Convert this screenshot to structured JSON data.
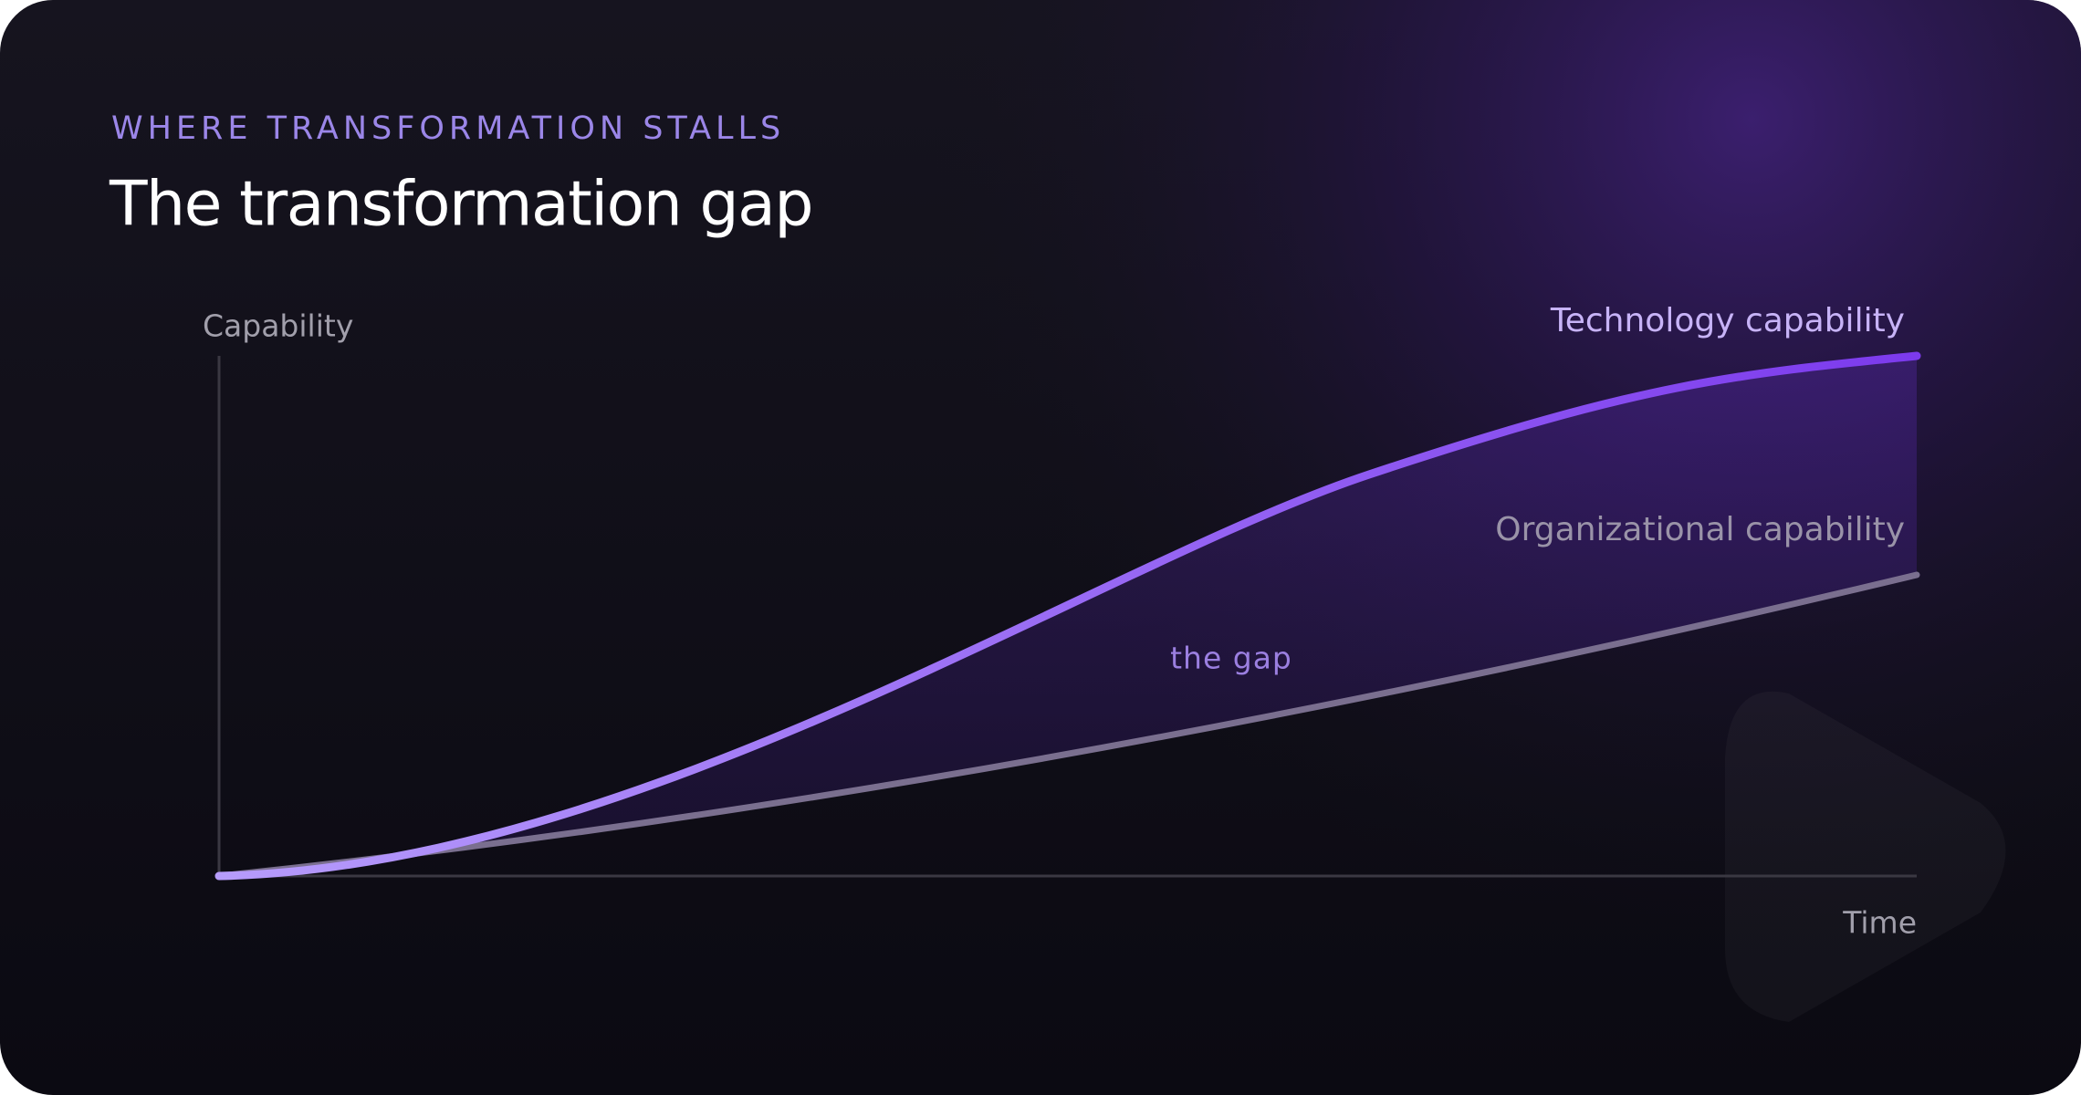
{
  "header": {
    "eyebrow": "WHERE TRANSFORMATION STALLS",
    "title": "The transformation gap"
  },
  "axes": {
    "y": "Capability",
    "x": "Time"
  },
  "curves": [
    {
      "label": "Technology capability"
    },
    {
      "label": "Organizational capability"
    }
  ],
  "annotation": "the gap"
}
